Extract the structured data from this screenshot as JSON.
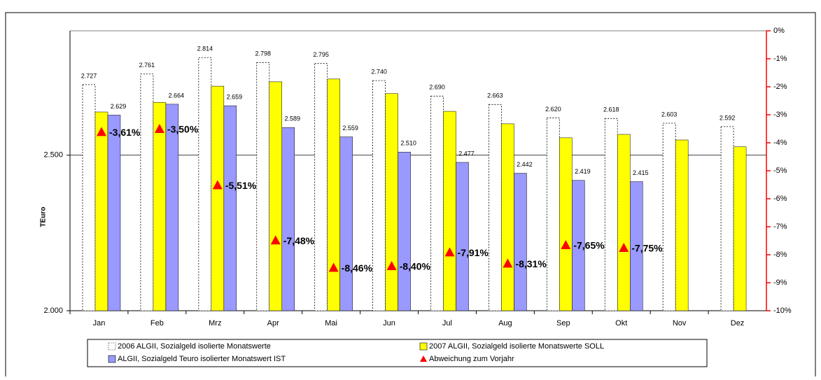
{
  "chart_data": {
    "type": "bar",
    "y_label": "TEuro",
    "categories": [
      "Jan",
      "Feb",
      "Mrz",
      "Apr",
      "Mai",
      "Jun",
      "Jul",
      "Aug",
      "Sep",
      "Okt",
      "Nov",
      "Dez"
    ],
    "series": [
      {
        "name": "2006 ALGII, Sozialgeld  isolierte Monatswerte",
        "color": "#ffffff",
        "values": [
          2727,
          2761,
          2814,
          2798,
          2795,
          2740,
          2690,
          2663,
          2620,
          2618,
          2603,
          2592
        ],
        "value_labels": [
          "2.727",
          "2.761",
          "2.814",
          "2.798",
          "2.795",
          "2.740",
          "2.690",
          "2.663",
          "2.620",
          "2.618",
          "2.603",
          "2.592"
        ]
      },
      {
        "name": "2007 ALGII, Sozialgeld  isolierte Monatswerte  SOLL",
        "color": "#ffff00",
        "values": [
          2639,
          2670,
          2722,
          2736,
          2745,
          2698,
          2641,
          2601,
          2556,
          2567,
          2549,
          2527
        ]
      },
      {
        "name": "ALGII, Sozialgeld Teuro isolierter Monatswert IST",
        "color": "#9999ff",
        "values": [
          2629,
          2664,
          2659,
          2589,
          2559,
          2510,
          2477,
          2442,
          2419,
          2415,
          null,
          null
        ],
        "value_labels": [
          "2.629",
          "2.664",
          "2.659",
          "2.589",
          "2.559",
          "2.510",
          "2.477",
          "2.442",
          "2.419",
          "2.415",
          null,
          null
        ]
      },
      {
        "name": "Abweichung zum Vorjahr",
        "color": "#ff0000",
        "axis": "y2",
        "marker": "triangle",
        "values": [
          -3.61,
          -3.5,
          -5.51,
          -7.48,
          -8.46,
          -8.4,
          -7.91,
          -8.31,
          -7.65,
          -7.75,
          null,
          null
        ],
        "value_labels": [
          "-3,61%",
          "-3,50%",
          "-5,51%",
          "-7,48%",
          "-8,46%",
          "-8,40%",
          "-7,91%",
          "-8,31%",
          "-7,65%",
          "-7,75%",
          null,
          null
        ]
      }
    ],
    "ylim": [
      2000,
      2900
    ],
    "yticks": [
      {
        "value": 2000,
        "label": "2.000"
      },
      {
        "value": 2500,
        "label": "2.500"
      }
    ],
    "y2lim": [
      -10,
      0
    ],
    "y2ticks": [
      {
        "value": -10,
        "label": "-10%"
      },
      {
        "value": -9,
        "label": "-9%"
      },
      {
        "value": -8,
        "label": "-8%"
      },
      {
        "value": -7,
        "label": "-7%"
      },
      {
        "value": -6,
        "label": "-6%"
      },
      {
        "value": -5,
        "label": "-5%"
      },
      {
        "value": -4,
        "label": "-4%"
      },
      {
        "value": -3,
        "label": "-3%"
      },
      {
        "value": -2,
        "label": "-2%"
      },
      {
        "value": -1,
        "label": "-1%"
      },
      {
        "value": 0,
        "label": "0%"
      }
    ],
    "y2_color": "#ff0000",
    "grid": true,
    "legend": "bottom"
  }
}
